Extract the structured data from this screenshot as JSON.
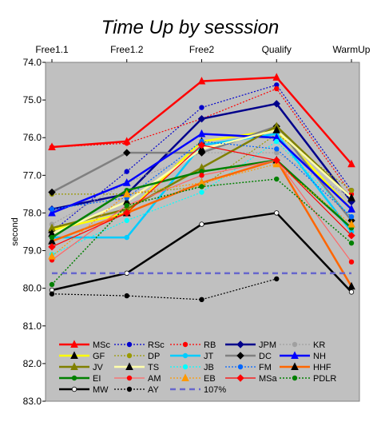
{
  "chart_data": {
    "type": "line",
    "title": "Time Up by sesssion",
    "xlabel": "",
    "ylabel": "second",
    "categories": [
      "Free1.1",
      "Free1.2",
      "Free2",
      "Qualify",
      "WarmUp"
    ],
    "ylim": [
      74.0,
      83.0
    ],
    "y_inverted": true,
    "y_ticks": [
      "74.0",
      "75.0",
      "76.0",
      "77.0",
      "78.0",
      "79.0",
      "80.0",
      "81.0",
      "82.0",
      "83.0"
    ],
    "grid": false,
    "x_axis_position": "top",
    "plot_background": "#c0c0c0",
    "legend_position": "bottom-inside",
    "series": [
      {
        "name": "MSc",
        "color": "#ff0000",
        "dash": "solid",
        "width": 2.5,
        "marker": "triangle",
        "mcolor": "#ff0000",
        "values": [
          76.25,
          76.1,
          74.5,
          74.4,
          76.7
        ]
      },
      {
        "name": "RSc",
        "color": "#0000cc",
        "dash": "double",
        "width": 1.2,
        "marker": "circle",
        "mcolor": "#0000cc",
        "values": [
          78.5,
          76.9,
          75.2,
          74.6,
          77.4
        ]
      },
      {
        "name": "RB",
        "color": "#ff0000",
        "dash": "double",
        "width": 1.2,
        "marker": "circle",
        "mcolor": "#ff0000",
        "values": [
          76.25,
          76.15,
          75.5,
          74.7,
          77.5
        ]
      },
      {
        "name": "JPM",
        "color": "#00008b",
        "dash": "solid",
        "width": 2.5,
        "marker": "diamond",
        "mcolor": "#00008b",
        "values": [
          77.9,
          77.5,
          75.5,
          75.1,
          77.7
        ]
      },
      {
        "name": "KR",
        "color": "#a0a0a0",
        "dash": "double",
        "width": 1.2,
        "marker": "circle",
        "mcolor": "#a0a0a0",
        "values": [
          78.3,
          77.2,
          76.4,
          76.4,
          77.6
        ]
      },
      {
        "name": "GF",
        "color": "#ffff00",
        "dash": "solid",
        "width": 2.5,
        "marker": "triangle",
        "mcolor": "#000000",
        "values": [
          78.45,
          78.0,
          76.1,
          75.8,
          77.9
        ]
      },
      {
        "name": "DP",
        "color": "#999900",
        "dash": "double",
        "width": 1.2,
        "marker": "circle",
        "mcolor": "#999900",
        "values": [
          77.5,
          77.5,
          77.3,
          75.9,
          77.4
        ]
      },
      {
        "name": "JT",
        "color": "#00ccff",
        "dash": "solid",
        "width": 2.5,
        "marker": "circle",
        "mcolor": "#00ccff",
        "values": [
          78.65,
          78.65,
          76.2,
          75.9,
          78.5
        ]
      },
      {
        "name": "DC",
        "color": "#808080",
        "dash": "solid",
        "width": 2.5,
        "marker": "diamond",
        "mcolor": "#000000",
        "values": [
          77.45,
          76.4,
          76.4,
          75.7,
          78.2
        ]
      },
      {
        "name": "NH",
        "color": "#0000ff",
        "dash": "solid",
        "width": 2.5,
        "marker": "triangle",
        "mcolor": "#0000ff",
        "values": [
          78.0,
          77.2,
          75.9,
          76.0,
          77.9
        ]
      },
      {
        "name": "JV",
        "color": "#808000",
        "dash": "solid",
        "width": 2.5,
        "marker": "triangle",
        "mcolor": "#808000",
        "values": [
          78.4,
          77.9,
          76.8,
          75.7,
          77.6
        ]
      },
      {
        "name": "TS",
        "color": "#ffffaa",
        "dash": "solid",
        "width": 2.5,
        "marker": "triangle",
        "mcolor": "#000000",
        "values": [
          78.55,
          77.7,
          76.3,
          75.8,
          77.6
        ]
      },
      {
        "name": "JB",
        "color": "#00ffff",
        "dash": "double",
        "width": 1.2,
        "marker": "circle",
        "mcolor": "#00ffff",
        "values": [
          79.1,
          78.2,
          77.45,
          76.1,
          78.1
        ]
      },
      {
        "name": "FM",
        "color": "#0066ff",
        "dash": "double",
        "width": 1.2,
        "marker": "circle",
        "mcolor": "#0066ff",
        "values": [
          77.9,
          77.6,
          76.1,
          76.3,
          78.1
        ]
      },
      {
        "name": "HHF",
        "color": "#ff6600",
        "dash": "solid",
        "width": 2.5,
        "marker": "triangle",
        "mcolor": "#000000",
        "values": [
          78.75,
          78.0,
          77.2,
          76.6,
          79.95
        ]
      },
      {
        "name": "EI",
        "color": "#008000",
        "dash": "solid",
        "width": 2.5,
        "marker": "circle",
        "mcolor": "#008000",
        "values": [
          78.65,
          77.4,
          76.9,
          76.6,
          78.4
        ]
      },
      {
        "name": "AM",
        "color": "#ff6666",
        "dash": "solid",
        "width": 1.2,
        "marker": "circle",
        "mcolor": "#ff0000",
        "values": [
          79.25,
          77.8,
          77.0,
          76.6,
          79.3
        ]
      },
      {
        "name": "EB",
        "color": "#ff9900",
        "dash": "double",
        "width": 1.2,
        "marker": "triangle",
        "mcolor": "#ff9900",
        "values": [
          79.15,
          77.5,
          77.2,
          76.7,
          78.3
        ]
      },
      {
        "name": "MSa",
        "color": "#ff0000",
        "dash": "solid",
        "width": 1.2,
        "marker": "diamond",
        "mcolor": "#ff0000",
        "values": [
          78.9,
          78.0,
          76.2,
          76.6,
          78.6
        ]
      },
      {
        "name": "PDLR",
        "color": "#008000",
        "dash": "double",
        "width": 1.5,
        "marker": "circle",
        "mcolor": "#008000",
        "values": [
          79.9,
          77.8,
          77.3,
          77.1,
          78.8
        ]
      },
      {
        "name": "MW",
        "color": "#000000",
        "dash": "solid",
        "width": 2.5,
        "marker": "circle",
        "mcolor": "#ffffff",
        "values": [
          80.05,
          79.6,
          78.3,
          78.0,
          80.1
        ]
      },
      {
        "name": "AY",
        "color": "#000000",
        "dash": "double",
        "width": 1.2,
        "marker": "circle",
        "mcolor": "#000000",
        "values": [
          80.15,
          80.2,
          80.3,
          79.75,
          null
        ]
      },
      {
        "name": "107%",
        "color": "#6666cc",
        "dash": "dash",
        "width": 2.5,
        "marker": "none",
        "mcolor": "#6666cc",
        "values": [
          79.6,
          79.6,
          79.6,
          79.6,
          79.6
        ]
      }
    ]
  }
}
